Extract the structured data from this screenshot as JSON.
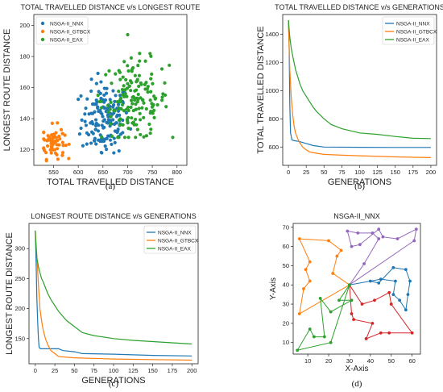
{
  "colors": {
    "blue": "#1f77b4",
    "orange": "#ff7f0e",
    "green": "#2ca02c",
    "red": "#d62728",
    "purple": "#9467bd"
  },
  "chart_data": [
    {
      "id": "a",
      "type": "scatter",
      "caption": "(a)",
      "title": "TOTAL TRAVELLED DISTANCE v/s LONGEST ROUTE",
      "xlabel": "TOTAL TRAVELLED DISTANCE",
      "ylabel": "LONGEST ROUTE DISTANCE",
      "xlim": [
        510,
        820
      ],
      "ylim": [
        110,
        207
      ],
      "xticks": [
        550,
        600,
        650,
        700,
        750,
        800
      ],
      "yticks": [
        120,
        140,
        160,
        180,
        200
      ],
      "grid": false,
      "legend_position": "top-left",
      "series": [
        {
          "name": "NSGA-II_NNX",
          "color": "#1f77b4",
          "x_range": [
            595,
            715
          ],
          "y_range": [
            118,
            188
          ],
          "center": [
            655,
            140
          ]
        },
        {
          "name": "NSGA-II_GTBCX",
          "color": "#ff7f0e",
          "x_range": [
            530,
            590
          ],
          "y_range": [
            113,
            145
          ],
          "center": [
            548,
            125
          ]
        },
        {
          "name": "NSGA-II_EAX",
          "color": "#2ca02c",
          "x_range": [
            640,
            810
          ],
          "y_range": [
            128,
            205
          ],
          "center": [
            715,
            152
          ]
        }
      ]
    },
    {
      "id": "b",
      "type": "line",
      "caption": "(b)",
      "title": "TOTAL TRAVELLED DISTANCE v/s GENERATIONS",
      "xlabel": "GENERATIONS",
      "ylabel": "TOTAL TRAVELLED DISTANCE",
      "xlim": [
        -8,
        208
      ],
      "ylim": [
        470,
        1540
      ],
      "xticks": [
        0,
        25,
        50,
        75,
        100,
        125,
        150,
        175,
        200
      ],
      "yticks": [
        600,
        800,
        1000,
        1200,
        1400
      ],
      "grid": false,
      "legend_position": "top-right",
      "series": [
        {
          "name": "NSGA-II_NNX",
          "color": "#1f77b4",
          "x": [
            0,
            1,
            2,
            3,
            5,
            8,
            15,
            25,
            35,
            50,
            100,
            150,
            200
          ],
          "values": [
            1500,
            1300,
            900,
            700,
            650,
            645,
            640,
            625,
            610,
            600,
            598,
            597,
            597
          ]
        },
        {
          "name": "NSGA-II_GTBCX",
          "color": "#ff7f0e",
          "x": [
            0,
            2,
            4,
            6,
            8,
            10,
            13,
            16,
            20,
            25,
            30,
            40,
            50,
            75,
            100,
            150,
            200
          ],
          "values": [
            1500,
            1150,
            950,
            830,
            750,
            700,
            660,
            630,
            600,
            580,
            565,
            555,
            548,
            542,
            538,
            530,
            525
          ]
        },
        {
          "name": "NSGA-II_EAX",
          "color": "#2ca02c",
          "x": [
            0,
            2,
            4,
            7,
            10,
            13,
            16,
            20,
            25,
            30,
            35,
            40,
            50,
            60,
            75,
            100,
            125,
            150,
            175,
            200
          ],
          "values": [
            1500,
            1380,
            1300,
            1220,
            1150,
            1100,
            1050,
            1000,
            960,
            920,
            880,
            850,
            800,
            760,
            730,
            700,
            690,
            675,
            662,
            660
          ]
        }
      ]
    },
    {
      "id": "c",
      "type": "line",
      "caption": "(c)",
      "title": "LONGEST ROUTE DISTANCE v/s GENERATIONS",
      "xlabel": "GENERATIONS",
      "ylabel": "LONGEST ROUTE DISTANCE",
      "xlim": [
        -8,
        208
      ],
      "ylim": [
        108,
        342
      ],
      "xticks": [
        0,
        25,
        50,
        75,
        100,
        125,
        150,
        175,
        200
      ],
      "yticks": [
        150,
        200,
        250,
        300
      ],
      "grid": false,
      "legend_position": "top-right",
      "series": [
        {
          "name": "NSGA-II_NNX",
          "color": "#1f77b4",
          "x": [
            0,
            1,
            2,
            3,
            4,
            5,
            7,
            30,
            35,
            50,
            60,
            100,
            150,
            200
          ],
          "values": [
            330,
            280,
            220,
            180,
            150,
            135,
            133,
            133,
            130,
            128,
            125,
            124,
            122,
            121
          ]
        },
        {
          "name": "NSGA-II_GTBCX",
          "color": "#ff7f0e",
          "x": [
            0,
            2,
            4,
            6,
            8,
            10,
            13,
            16,
            20,
            25,
            30,
            50,
            100,
            150,
            200
          ],
          "values": [
            330,
            290,
            240,
            200,
            180,
            165,
            150,
            140,
            130,
            125,
            120,
            118,
            116,
            115,
            114
          ]
        },
        {
          "name": "NSGA-II_EAX",
          "color": "#2ca02c",
          "x": [
            0,
            1,
            2,
            4,
            6,
            8,
            10,
            13,
            16,
            20,
            25,
            30,
            40,
            50,
            60,
            75,
            100,
            125,
            150,
            175,
            200
          ],
          "values": [
            330,
            300,
            285,
            270,
            260,
            250,
            245,
            235,
            225,
            215,
            205,
            195,
            180,
            170,
            160,
            155,
            150,
            147,
            145,
            143,
            141
          ]
        }
      ]
    },
    {
      "id": "d",
      "type": "line",
      "caption": "(d)",
      "title": "NSGA-II_NNX",
      "xlabel": "X-Axis",
      "ylabel": "Y-Axis",
      "xlim": [
        3,
        64
      ],
      "ylim": [
        4,
        72
      ],
      "xticks": [
        10,
        20,
        30,
        40,
        50,
        60
      ],
      "yticks": [
        10,
        20,
        30,
        40,
        50,
        60,
        70
      ],
      "grid": false,
      "depot": [
        30,
        40
      ],
      "routes": [
        {
          "color": "#ff7f0e",
          "points": [
            [
              30,
              40
            ],
            [
              22,
              46
            ],
            [
              24,
              55
            ],
            [
              26,
              58
            ],
            [
              20,
              63
            ],
            [
              6,
              64
            ],
            [
              11,
              52
            ],
            [
              9,
              48
            ],
            [
              11,
              42
            ],
            [
              8,
              38
            ],
            [
              6,
              25
            ],
            [
              30,
              40
            ]
          ]
        },
        {
          "color": "#9467bd",
          "points": [
            [
              30,
              40
            ],
            [
              37,
              51
            ],
            [
              44,
              64
            ],
            [
              41,
              67
            ],
            [
              34,
              67
            ],
            [
              29,
              68
            ],
            [
              31,
              60
            ],
            [
              35,
              61
            ],
            [
              44,
              69
            ],
            [
              46,
              65
            ],
            [
              53,
              64
            ],
            [
              62,
              69
            ],
            [
              61,
              63
            ],
            [
              30,
              40
            ]
          ]
        },
        {
          "color": "#1f77b4",
          "points": [
            [
              30,
              40
            ],
            [
              40,
              42
            ],
            [
              44,
              41
            ],
            [
              51,
              49
            ],
            [
              57,
              48
            ],
            [
              59,
              42
            ],
            [
              58,
              35
            ],
            [
              57,
              27
            ],
            [
              54,
              32
            ],
            [
              51,
              35
            ],
            [
              52,
              42
            ],
            [
              45,
              43
            ],
            [
              30,
              40
            ]
          ]
        },
        {
          "color": "#d62728",
          "points": [
            [
              30,
              40
            ],
            [
              36,
              30
            ],
            [
              42,
              32
            ],
            [
              49,
              36
            ],
            [
              50,
              30
            ],
            [
              60,
              15
            ],
            [
              49,
              15
            ],
            [
              45,
              15
            ],
            [
              38,
              12
            ],
            [
              41,
              20
            ],
            [
              32,
              22
            ],
            [
              31,
              25
            ],
            [
              30,
              40
            ]
          ]
        },
        {
          "color": "#2ca02c",
          "points": [
            [
              30,
              40
            ],
            [
              25,
              32
            ],
            [
              31,
              32
            ],
            [
              21,
              26
            ],
            [
              16,
              33
            ],
            [
              18,
              13
            ],
            [
              13,
              13
            ],
            [
              11,
              17
            ],
            [
              5,
              6
            ],
            [
              21,
              10
            ],
            [
              30,
              40
            ]
          ]
        }
      ]
    }
  ]
}
